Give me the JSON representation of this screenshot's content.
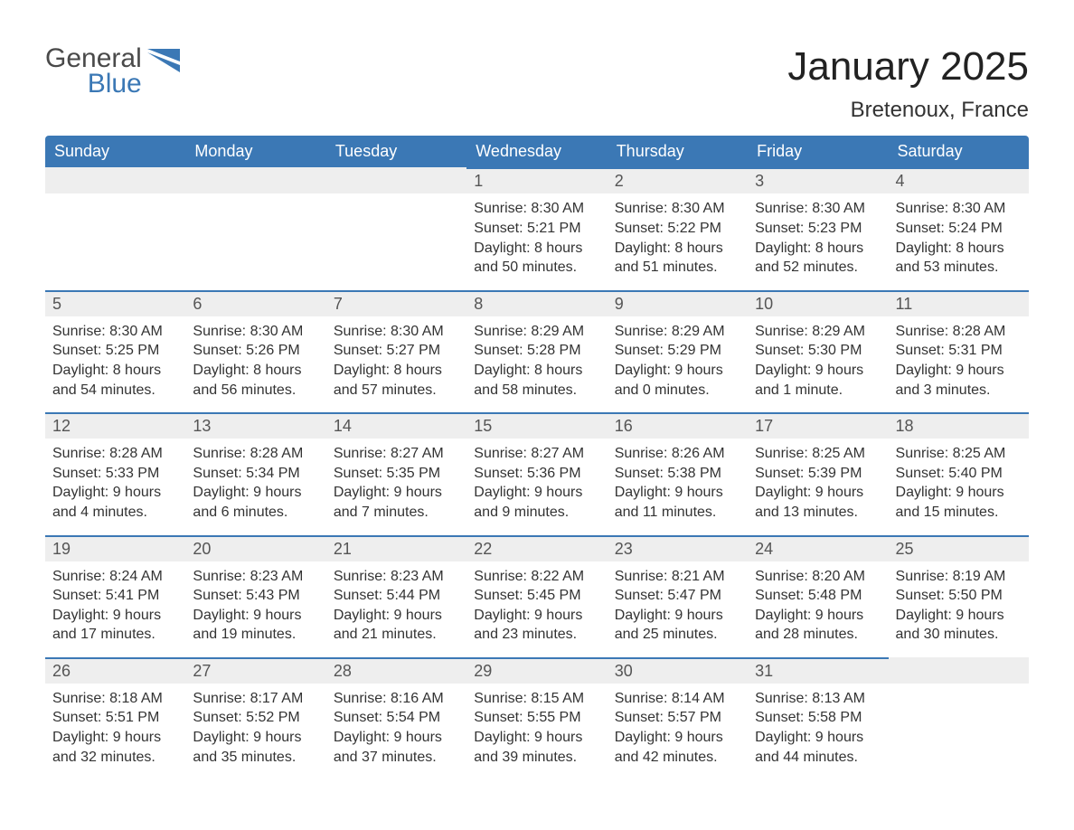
{
  "brand": {
    "word1": "General",
    "word2": "Blue",
    "word1_color": "#4a4a4a",
    "word2_color": "#3b78b5",
    "shape_color": "#3b78b5"
  },
  "title": "January 2025",
  "location": "Bretenoux, France",
  "colors": {
    "header_bg": "#3b78b5",
    "header_text": "#ffffff",
    "daynum_bg": "#eeeeee",
    "daynum_border": "#3b78b5",
    "text": "#333333",
    "background": "#ffffff"
  },
  "weekdays": [
    "Sunday",
    "Monday",
    "Tuesday",
    "Wednesday",
    "Thursday",
    "Friday",
    "Saturday"
  ],
  "weeks": [
    [
      {
        "empty": true
      },
      {
        "empty": true
      },
      {
        "empty": true
      },
      {
        "n": "1",
        "sunrise": "Sunrise: 8:30 AM",
        "sunset": "Sunset: 5:21 PM",
        "day1": "Daylight: 8 hours",
        "day2": "and 50 minutes."
      },
      {
        "n": "2",
        "sunrise": "Sunrise: 8:30 AM",
        "sunset": "Sunset: 5:22 PM",
        "day1": "Daylight: 8 hours",
        "day2": "and 51 minutes."
      },
      {
        "n": "3",
        "sunrise": "Sunrise: 8:30 AM",
        "sunset": "Sunset: 5:23 PM",
        "day1": "Daylight: 8 hours",
        "day2": "and 52 minutes."
      },
      {
        "n": "4",
        "sunrise": "Sunrise: 8:30 AM",
        "sunset": "Sunset: 5:24 PM",
        "day1": "Daylight: 8 hours",
        "day2": "and 53 minutes."
      }
    ],
    [
      {
        "n": "5",
        "sunrise": "Sunrise: 8:30 AM",
        "sunset": "Sunset: 5:25 PM",
        "day1": "Daylight: 8 hours",
        "day2": "and 54 minutes."
      },
      {
        "n": "6",
        "sunrise": "Sunrise: 8:30 AM",
        "sunset": "Sunset: 5:26 PM",
        "day1": "Daylight: 8 hours",
        "day2": "and 56 minutes."
      },
      {
        "n": "7",
        "sunrise": "Sunrise: 8:30 AM",
        "sunset": "Sunset: 5:27 PM",
        "day1": "Daylight: 8 hours",
        "day2": "and 57 minutes."
      },
      {
        "n": "8",
        "sunrise": "Sunrise: 8:29 AM",
        "sunset": "Sunset: 5:28 PM",
        "day1": "Daylight: 8 hours",
        "day2": "and 58 minutes."
      },
      {
        "n": "9",
        "sunrise": "Sunrise: 8:29 AM",
        "sunset": "Sunset: 5:29 PM",
        "day1": "Daylight: 9 hours",
        "day2": "and 0 minutes."
      },
      {
        "n": "10",
        "sunrise": "Sunrise: 8:29 AM",
        "sunset": "Sunset: 5:30 PM",
        "day1": "Daylight: 9 hours",
        "day2": "and 1 minute."
      },
      {
        "n": "11",
        "sunrise": "Sunrise: 8:28 AM",
        "sunset": "Sunset: 5:31 PM",
        "day1": "Daylight: 9 hours",
        "day2": "and 3 minutes."
      }
    ],
    [
      {
        "n": "12",
        "sunrise": "Sunrise: 8:28 AM",
        "sunset": "Sunset: 5:33 PM",
        "day1": "Daylight: 9 hours",
        "day2": "and 4 minutes."
      },
      {
        "n": "13",
        "sunrise": "Sunrise: 8:28 AM",
        "sunset": "Sunset: 5:34 PM",
        "day1": "Daylight: 9 hours",
        "day2": "and 6 minutes."
      },
      {
        "n": "14",
        "sunrise": "Sunrise: 8:27 AM",
        "sunset": "Sunset: 5:35 PM",
        "day1": "Daylight: 9 hours",
        "day2": "and 7 minutes."
      },
      {
        "n": "15",
        "sunrise": "Sunrise: 8:27 AM",
        "sunset": "Sunset: 5:36 PM",
        "day1": "Daylight: 9 hours",
        "day2": "and 9 minutes."
      },
      {
        "n": "16",
        "sunrise": "Sunrise: 8:26 AM",
        "sunset": "Sunset: 5:38 PM",
        "day1": "Daylight: 9 hours",
        "day2": "and 11 minutes."
      },
      {
        "n": "17",
        "sunrise": "Sunrise: 8:25 AM",
        "sunset": "Sunset: 5:39 PM",
        "day1": "Daylight: 9 hours",
        "day2": "and 13 minutes."
      },
      {
        "n": "18",
        "sunrise": "Sunrise: 8:25 AM",
        "sunset": "Sunset: 5:40 PM",
        "day1": "Daylight: 9 hours",
        "day2": "and 15 minutes."
      }
    ],
    [
      {
        "n": "19",
        "sunrise": "Sunrise: 8:24 AM",
        "sunset": "Sunset: 5:41 PM",
        "day1": "Daylight: 9 hours",
        "day2": "and 17 minutes."
      },
      {
        "n": "20",
        "sunrise": "Sunrise: 8:23 AM",
        "sunset": "Sunset: 5:43 PM",
        "day1": "Daylight: 9 hours",
        "day2": "and 19 minutes."
      },
      {
        "n": "21",
        "sunrise": "Sunrise: 8:23 AM",
        "sunset": "Sunset: 5:44 PM",
        "day1": "Daylight: 9 hours",
        "day2": "and 21 minutes."
      },
      {
        "n": "22",
        "sunrise": "Sunrise: 8:22 AM",
        "sunset": "Sunset: 5:45 PM",
        "day1": "Daylight: 9 hours",
        "day2": "and 23 minutes."
      },
      {
        "n": "23",
        "sunrise": "Sunrise: 8:21 AM",
        "sunset": "Sunset: 5:47 PM",
        "day1": "Daylight: 9 hours",
        "day2": "and 25 minutes."
      },
      {
        "n": "24",
        "sunrise": "Sunrise: 8:20 AM",
        "sunset": "Sunset: 5:48 PM",
        "day1": "Daylight: 9 hours",
        "day2": "and 28 minutes."
      },
      {
        "n": "25",
        "sunrise": "Sunrise: 8:19 AM",
        "sunset": "Sunset: 5:50 PM",
        "day1": "Daylight: 9 hours",
        "day2": "and 30 minutes."
      }
    ],
    [
      {
        "n": "26",
        "sunrise": "Sunrise: 8:18 AM",
        "sunset": "Sunset: 5:51 PM",
        "day1": "Daylight: 9 hours",
        "day2": "and 32 minutes."
      },
      {
        "n": "27",
        "sunrise": "Sunrise: 8:17 AM",
        "sunset": "Sunset: 5:52 PM",
        "day1": "Daylight: 9 hours",
        "day2": "and 35 minutes."
      },
      {
        "n": "28",
        "sunrise": "Sunrise: 8:16 AM",
        "sunset": "Sunset: 5:54 PM",
        "day1": "Daylight: 9 hours",
        "day2": "and 37 minutes."
      },
      {
        "n": "29",
        "sunrise": "Sunrise: 8:15 AM",
        "sunset": "Sunset: 5:55 PM",
        "day1": "Daylight: 9 hours",
        "day2": "and 39 minutes."
      },
      {
        "n": "30",
        "sunrise": "Sunrise: 8:14 AM",
        "sunset": "Sunset: 5:57 PM",
        "day1": "Daylight: 9 hours",
        "day2": "and 42 minutes."
      },
      {
        "n": "31",
        "sunrise": "Sunrise: 8:13 AM",
        "sunset": "Sunset: 5:58 PM",
        "day1": "Daylight: 9 hours",
        "day2": "and 44 minutes."
      },
      {
        "empty": true
      }
    ]
  ]
}
